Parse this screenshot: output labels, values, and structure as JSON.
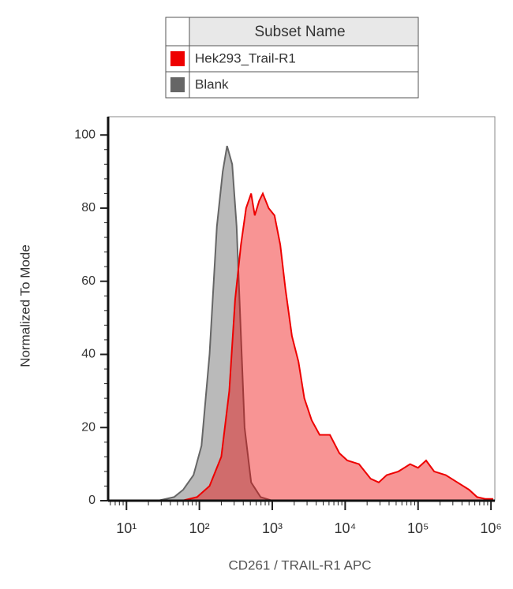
{
  "chart_data": {
    "type": "area",
    "legend_title": "Subset Name",
    "x_label": "CD261 / TRAIL-R1 APC",
    "y_label": "Normalized To Mode",
    "log_x": true,
    "xlim": [
      5.6,
      1130000
    ],
    "xticks": [
      {
        "value": 10,
        "label": "10¹"
      },
      {
        "value": 100,
        "label": "10²"
      },
      {
        "value": 1000,
        "label": "10³"
      },
      {
        "value": 10000,
        "label": "10⁴"
      },
      {
        "value": 100000,
        "label": "10⁵"
      },
      {
        "value": 1000000,
        "label": "10⁶"
      }
    ],
    "ylim": [
      0,
      105
    ],
    "yticks": [
      0,
      20,
      40,
      60,
      80,
      100
    ],
    "series": [
      {
        "name": "Hek293_Trail-R1",
        "color": "#ee0000",
        "x": [
          58,
          93,
          138,
          200,
          257,
          309,
          372,
          437,
          513,
          575,
          661,
          741,
          891,
          1072,
          1288,
          1514,
          1862,
          2291,
          2754,
          3467,
          4467,
          6166,
          8318,
          10715,
          15488,
          22387,
          28840,
          37154,
          53703,
          77625,
          100000,
          128825,
          165959,
          239883,
          346737,
          501187,
          645654,
          831764,
          1071519
        ],
        "values": [
          0,
          1,
          4,
          12,
          30,
          55,
          70,
          80,
          84,
          78,
          82,
          84,
          80,
          78,
          70,
          58,
          45,
          38,
          28,
          22,
          18,
          18,
          13,
          11,
          10,
          6,
          5,
          7,
          8,
          10,
          9,
          11,
          8,
          7,
          5,
          3,
          1,
          0.5,
          0.5
        ]
      },
      {
        "name": "Blank",
        "color": "#666666",
        "x": [
          27,
          45,
          60,
          83,
          107,
          138,
          174,
          209,
          240,
          282,
          324,
          372,
          417,
          513,
          692,
          1000
        ],
        "values": [
          0,
          1,
          3,
          7,
          15,
          40,
          75,
          90,
          97,
          92,
          75,
          45,
          20,
          5,
          1,
          0
        ]
      }
    ]
  }
}
